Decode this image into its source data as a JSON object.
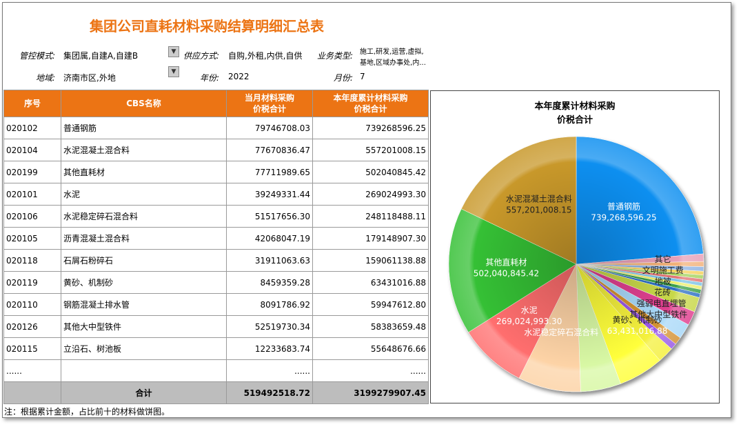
{
  "header": {
    "title": "集团公司直耗材料采购结算明细汇总表"
  },
  "filters": [
    {
      "label": "管控模式:",
      "lines": [
        "集团属,自建A,自建B"
      ]
    },
    {
      "label": "供应方式:",
      "lines": [
        "自购,外租,内供,自供"
      ]
    },
    {
      "label": "业务类型:",
      "lines": [
        "施工,研发,运营,虚拟,",
        "基地,区域办事处,内..."
      ]
    },
    {
      "label": "地域:",
      "lines": [
        "济南市区,外地"
      ]
    },
    {
      "label": "年份:",
      "lines": [
        "2022"
      ]
    },
    {
      "label": "月份:",
      "lines": [
        "7"
      ]
    }
  ],
  "table": {
    "columns": [
      [
        "序号"
      ],
      [
        "CBS名称"
      ],
      [
        "当月材料采购",
        "价税合计"
      ],
      [
        "本年度累计材料采购",
        "价税合计"
      ]
    ],
    "rows": [
      [
        "020102",
        "普通钢筋",
        "79746708.03",
        "739268596.25"
      ],
      [
        "020104",
        "水泥混凝土混合料",
        "77670836.47",
        "557201008.15"
      ],
      [
        "020199",
        "其他直耗材",
        "77711989.65",
        "502040845.42"
      ],
      [
        "020101",
        "水泥",
        "39249331.44",
        "269024993.30"
      ],
      [
        "020106",
        "水泥稳定碎石混合料",
        "51517656.30",
        "248118488.11"
      ],
      [
        "020105",
        "沥青混凝土混合料",
        "42068047.19",
        "179148907.30"
      ],
      [
        "020118",
        "石屑石粉碎石",
        "31911063.63",
        "159061138.88"
      ],
      [
        "020119",
        "黄砂、机制砂",
        "8459359.28",
        "63431016.88"
      ],
      [
        "020110",
        "钢筋混凝土排水管",
        "8091786.92",
        "59947612.80"
      ],
      [
        "020126",
        "其他大中型铁件",
        "52519730.34",
        "58383659.48"
      ],
      [
        "020115",
        "立沿石、树池板",
        "12233683.74",
        "55648676.66"
      ],
      [
        "......",
        null,
        "......",
        "......"
      ],
      [
        null,
        "合计",
        "519492518.72",
        "3199279907.45"
      ]
    ],
    "note": "注：根据累计金额，占比前十的材料做饼图。"
  },
  "chart_data": {
    "type": "pie",
    "title": [
      "本年度累计材料采购",
      "价税合计"
    ],
    "categories": [
      "普通钢筋",
      "其它",
      "文明施工费",
      "地被",
      null,
      "花砖",
      null,
      null,
      "强弱电直埋管",
      null,
      null,
      "其他大中型铁件",
      null,
      null,
      null,
      null,
      "黄砂、机制砂",
      null,
      null,
      "水泥稳定碎石混合料",
      "水泥",
      "其他直耗材",
      "水泥混凝土混合料"
    ],
    "values": [
      739268596.25,
      30000000,
      20000000,
      18000000,
      15000000,
      15000000,
      14000000,
      14000000,
      14000000,
      16000000,
      16000000,
      58383659.48,
      55648676.66,
      59947612.8,
      30000000,
      25000000,
      63431016.88,
      179148907.3,
      159061138.88,
      248118488.11,
      269024993.3,
      502040845.42,
      557201008.15
    ],
    "value_labels": [
      "739,268,596.25",
      null,
      null,
      null,
      null,
      null,
      null,
      null,
      null,
      null,
      null,
      null,
      null,
      null,
      null,
      null,
      "63,431,016.88",
      null,
      null,
      null,
      "269,024,993.30",
      "502,040,845.42",
      "557,201,008.15"
    ],
    "colors": [
      "#0a8ff0",
      "#e8a0b8",
      "#f2b27a",
      "#8eb2e2",
      "#f6d25c",
      "#a6d45e",
      "#e27474",
      "#7ec4e6",
      "#eef06c",
      "#3aa048",
      "#2f70c4",
      "#c8d848",
      "#e04090",
      "#a8d8f8",
      "#d49232",
      "#9a58e6",
      "#f4f03c",
      "#ffff3a",
      "#d8f8a4",
      "#fdd3a6",
      "#ff6e6e",
      "#34c034",
      "#c8982a"
    ]
  }
}
